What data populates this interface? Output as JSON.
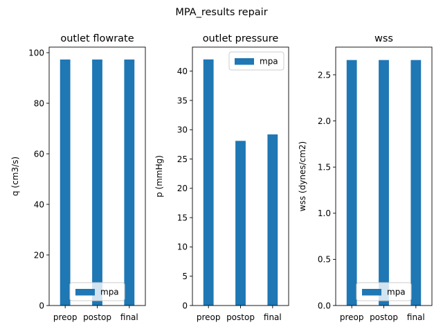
{
  "figure": {
    "title": "MPA_results repair"
  },
  "chart_data": [
    {
      "type": "bar",
      "title": "outlet flowrate",
      "xlabel": "",
      "ylabel": "q (cm3/s)",
      "categories": [
        "preop",
        "postop",
        "final"
      ],
      "series": [
        {
          "name": "mpa",
          "values": [
            97.3,
            97.3,
            97.3
          ]
        }
      ],
      "ylim": [
        0,
        102.2
      ],
      "yticks": [
        0,
        20,
        40,
        60,
        80,
        100
      ],
      "ytick_labels": [
        "0",
        "20",
        "40",
        "60",
        "80",
        "100"
      ],
      "legend_position": "lower center",
      "color": "#1f77b4",
      "grid": false
    },
    {
      "type": "bar",
      "title": "outlet pressure",
      "xlabel": "",
      "ylabel": "p (mmHg)",
      "categories": [
        "preop",
        "postop",
        "final"
      ],
      "series": [
        {
          "name": "mpa",
          "values": [
            42.0,
            28.1,
            29.2
          ]
        }
      ],
      "ylim": [
        0,
        44.1
      ],
      "yticks": [
        0,
        5,
        10,
        15,
        20,
        25,
        30,
        35,
        40
      ],
      "ytick_labels": [
        "0",
        "5",
        "10",
        "15",
        "20",
        "25",
        "30",
        "35",
        "40"
      ],
      "legend_position": "upper right",
      "color": "#1f77b4",
      "grid": false
    },
    {
      "type": "bar",
      "title": "wss",
      "xlabel": "",
      "ylabel": "wss (dynes/cm2)",
      "categories": [
        "preop",
        "postop",
        "final"
      ],
      "series": [
        {
          "name": "mpa",
          "values": [
            2.66,
            2.66,
            2.66
          ]
        }
      ],
      "ylim": [
        0,
        2.8
      ],
      "yticks": [
        0,
        0.5,
        1.0,
        1.5,
        2.0,
        2.5
      ],
      "ytick_labels": [
        "0.0",
        "0.5",
        "1.0",
        "1.5",
        "2.0",
        "2.5"
      ],
      "legend_position": "lower center",
      "color": "#1f77b4",
      "grid": false
    }
  ]
}
